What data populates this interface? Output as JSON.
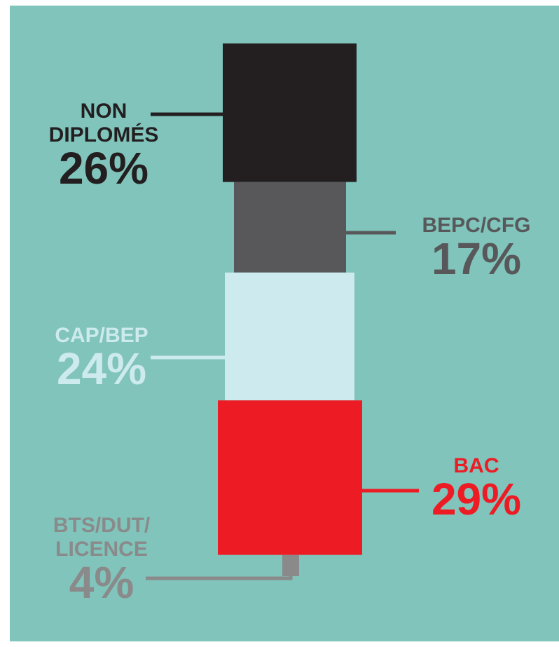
{
  "chart_data": {
    "type": "stacked-column",
    "categories": [
      "NON\nDIPLOMÉS",
      "BEPC/CFG",
      "CAP/BEP",
      "BAC",
      "BTS/DUT/\nLICENCE"
    ],
    "values": [
      26,
      17,
      24,
      29,
      4
    ],
    "value_labels": [
      "26%",
      "17%",
      "24%",
      "29%",
      "4%"
    ],
    "colors": [
      "#231f20",
      "#58585a",
      "#cdeaee",
      "#ed1c24",
      "#8a8a8a"
    ]
  }
}
